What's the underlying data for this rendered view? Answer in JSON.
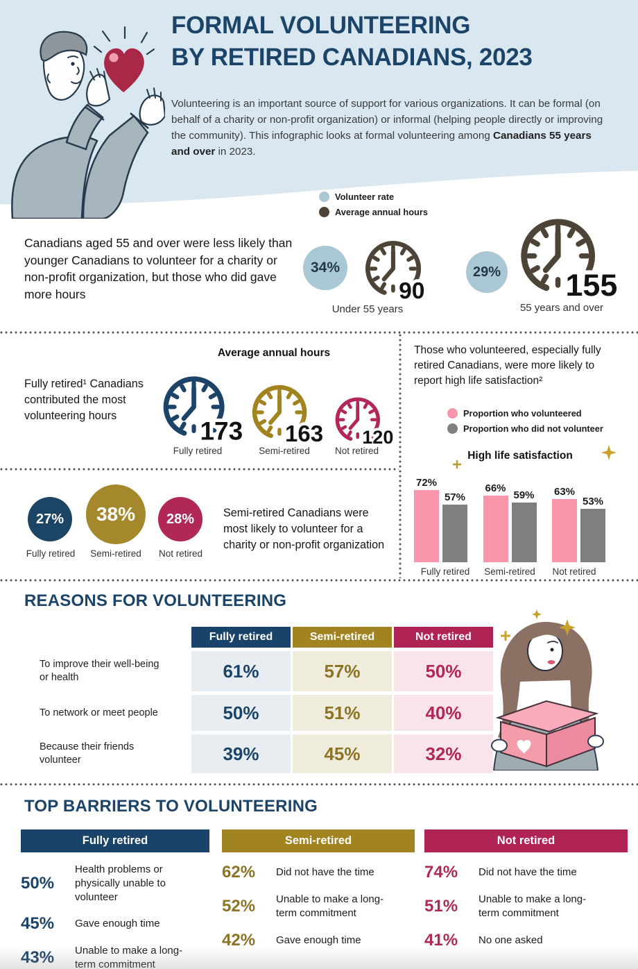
{
  "colors": {
    "navy": "#1b4468",
    "gold": "#a1841f",
    "crimson": "#b12757",
    "light_blue": "#a9c8d4",
    "clock_brown": "#4e4337",
    "pink": "#f995ab",
    "gray": "#7f7f7f",
    "banner": "#d9e7f0"
  },
  "header": {
    "title_line1": "FORMAL VOLUNTEERING",
    "title_line2": "BY RETIRED CANADIANS, 2023",
    "intro_1": "Volunteering is an important source of support for various organizations. It can be formal (on behalf of a charity or non-profit organization) or informal (helping people directly or improving the community). This infographic looks at formal volunteering among ",
    "intro_bold": "Canadians 55 years and over",
    "intro_2": " in 2023."
  },
  "age_comparison": {
    "legend": [
      {
        "label": "Volunteer rate",
        "color": "#a9c8d4"
      },
      {
        "label": "Average annual hours",
        "color": "#4e4337"
      }
    ],
    "statement": "Canadians aged 55 and over were less likely than younger Canadians to volunteer for a charity or non-profit organization, but those who did gave more hours",
    "groups": [
      {
        "rate": "34%",
        "hours": "90",
        "label": "Under 55 years"
      },
      {
        "rate": "29%",
        "hours": "155",
        "label": "55 years and over"
      }
    ]
  },
  "hours_by_status": {
    "heading": "Average annual hours",
    "statement": "Fully retired¹ Canadians contributed the most volunteering hours",
    "items": [
      {
        "value": "173",
        "label": "Fully retired"
      },
      {
        "value": "163",
        "label": "Semi-retired"
      },
      {
        "value": "120",
        "label": "Not retired"
      }
    ]
  },
  "rate_by_status": {
    "statement": "Semi-retired Canadians were most likely to volunteer for a charity or non-profit organization",
    "items": [
      {
        "value": "27%",
        "label": "Fully retired"
      },
      {
        "value": "38%",
        "label": "Semi-retired"
      },
      {
        "value": "28%",
        "label": "Not retired"
      }
    ]
  },
  "satisfaction": {
    "statement": "Those who volunteered, especially fully retired Canadians, were more likely to report high life satisfaction²",
    "legend": [
      {
        "label": "Proportion who volunteered",
        "color": "#f995ab"
      },
      {
        "label": "Proportion who did not volunteer",
        "color": "#7f7f7f"
      }
    ],
    "chart_title": "High life satisfaction",
    "groups": [
      {
        "label": "Fully retired",
        "volunteered": "72%",
        "not_volunteered": "57%"
      },
      {
        "label": "Semi-retired",
        "volunteered": "66%",
        "not_volunteered": "59%"
      },
      {
        "label": "Not retired",
        "volunteered": "63%",
        "not_volunteered": "53%"
      }
    ]
  },
  "reasons": {
    "heading": "REASONS FOR VOLUNTEERING",
    "columns": [
      "Fully retired",
      "Semi-retired",
      "Not retired"
    ],
    "rows": [
      {
        "label": "To improve their well-being or health",
        "values": [
          "61%",
          "57%",
          "50%"
        ]
      },
      {
        "label": "To network or meet people",
        "values": [
          "50%",
          "51%",
          "40%"
        ]
      },
      {
        "label": "Because their friends volunteer",
        "values": [
          "39%",
          "45%",
          "32%"
        ]
      }
    ]
  },
  "barriers": {
    "heading": "TOP BARRIERS TO VOLUNTEERING",
    "groups": [
      {
        "title": "Fully retired",
        "items": [
          {
            "value": "50%",
            "label": "Health problems or physically unable to volunteer"
          },
          {
            "value": "45%",
            "label": "Gave enough time"
          },
          {
            "value": "43%",
            "label": "Unable to make a long-term commitment"
          }
        ]
      },
      {
        "title": "Semi-retired",
        "items": [
          {
            "value": "62%",
            "label": "Did not have the time"
          },
          {
            "value": "52%",
            "label": "Unable to make a long-term commitment"
          },
          {
            "value": "42%",
            "label": "Gave enough time"
          }
        ]
      },
      {
        "title": "Not retired",
        "items": [
          {
            "value": "74%",
            "label": "Did not have the time"
          },
          {
            "value": "51%",
            "label": "Unable to make a long-term commitment"
          },
          {
            "value": "41%",
            "label": "No one asked"
          }
        ]
      }
    ]
  },
  "chart_data": [
    {
      "type": "pictogram",
      "title": "Volunteer rate and average annual hours by age group",
      "categories": [
        "Under 55 years",
        "55 years and over"
      ],
      "series": [
        {
          "name": "Volunteer rate (%)",
          "values": [
            34,
            29
          ]
        },
        {
          "name": "Average annual hours",
          "values": [
            90,
            155
          ]
        }
      ]
    },
    {
      "type": "pictogram",
      "title": "Average annual hours by retirement status",
      "categories": [
        "Fully retired",
        "Semi-retired",
        "Not retired"
      ],
      "values": [
        173,
        163,
        120
      ]
    },
    {
      "type": "pictogram",
      "title": "Volunteer rate by retirement status (%)",
      "categories": [
        "Fully retired",
        "Semi-retired",
        "Not retired"
      ],
      "values": [
        27,
        38,
        28
      ]
    },
    {
      "type": "bar",
      "title": "High life satisfaction",
      "categories": [
        "Fully retired",
        "Semi-retired",
        "Not retired"
      ],
      "series": [
        {
          "name": "Proportion who volunteered",
          "values": [
            72,
            66,
            63
          ]
        },
        {
          "name": "Proportion who did not volunteer",
          "values": [
            57,
            59,
            53
          ]
        }
      ],
      "unit": "%",
      "ylim": [
        0,
        100
      ],
      "legend_position": "top",
      "grid": false
    },
    {
      "type": "table",
      "title": "Reasons for volunteering (%)",
      "columns": [
        "Fully retired",
        "Semi-retired",
        "Not retired"
      ],
      "rows": [
        {
          "label": "To improve their well-being or health",
          "values": [
            61,
            57,
            50
          ]
        },
        {
          "label": "To network or meet people",
          "values": [
            50,
            51,
            40
          ]
        },
        {
          "label": "Because their friends volunteer",
          "values": [
            39,
            45,
            32
          ]
        }
      ]
    },
    {
      "type": "table",
      "title": "Top barriers to volunteering (%)",
      "groups": [
        {
          "name": "Fully retired",
          "items": [
            {
              "label": "Health problems or physically unable to volunteer",
              "value": 50
            },
            {
              "label": "Gave enough time",
              "value": 45
            },
            {
              "label": "Unable to make a long-term commitment",
              "value": 43
            }
          ]
        },
        {
          "name": "Semi-retired",
          "items": [
            {
              "label": "Did not have the time",
              "value": 62
            },
            {
              "label": "Unable to make a long-term commitment",
              "value": 52
            },
            {
              "label": "Gave enough time",
              "value": 42
            }
          ]
        },
        {
          "name": "Not retired",
          "items": [
            {
              "label": "Did not have the time",
              "value": 74
            },
            {
              "label": "Unable to make a long-term commitment",
              "value": 51
            },
            {
              "label": "No one asked",
              "value": 41
            }
          ]
        }
      ]
    }
  ]
}
